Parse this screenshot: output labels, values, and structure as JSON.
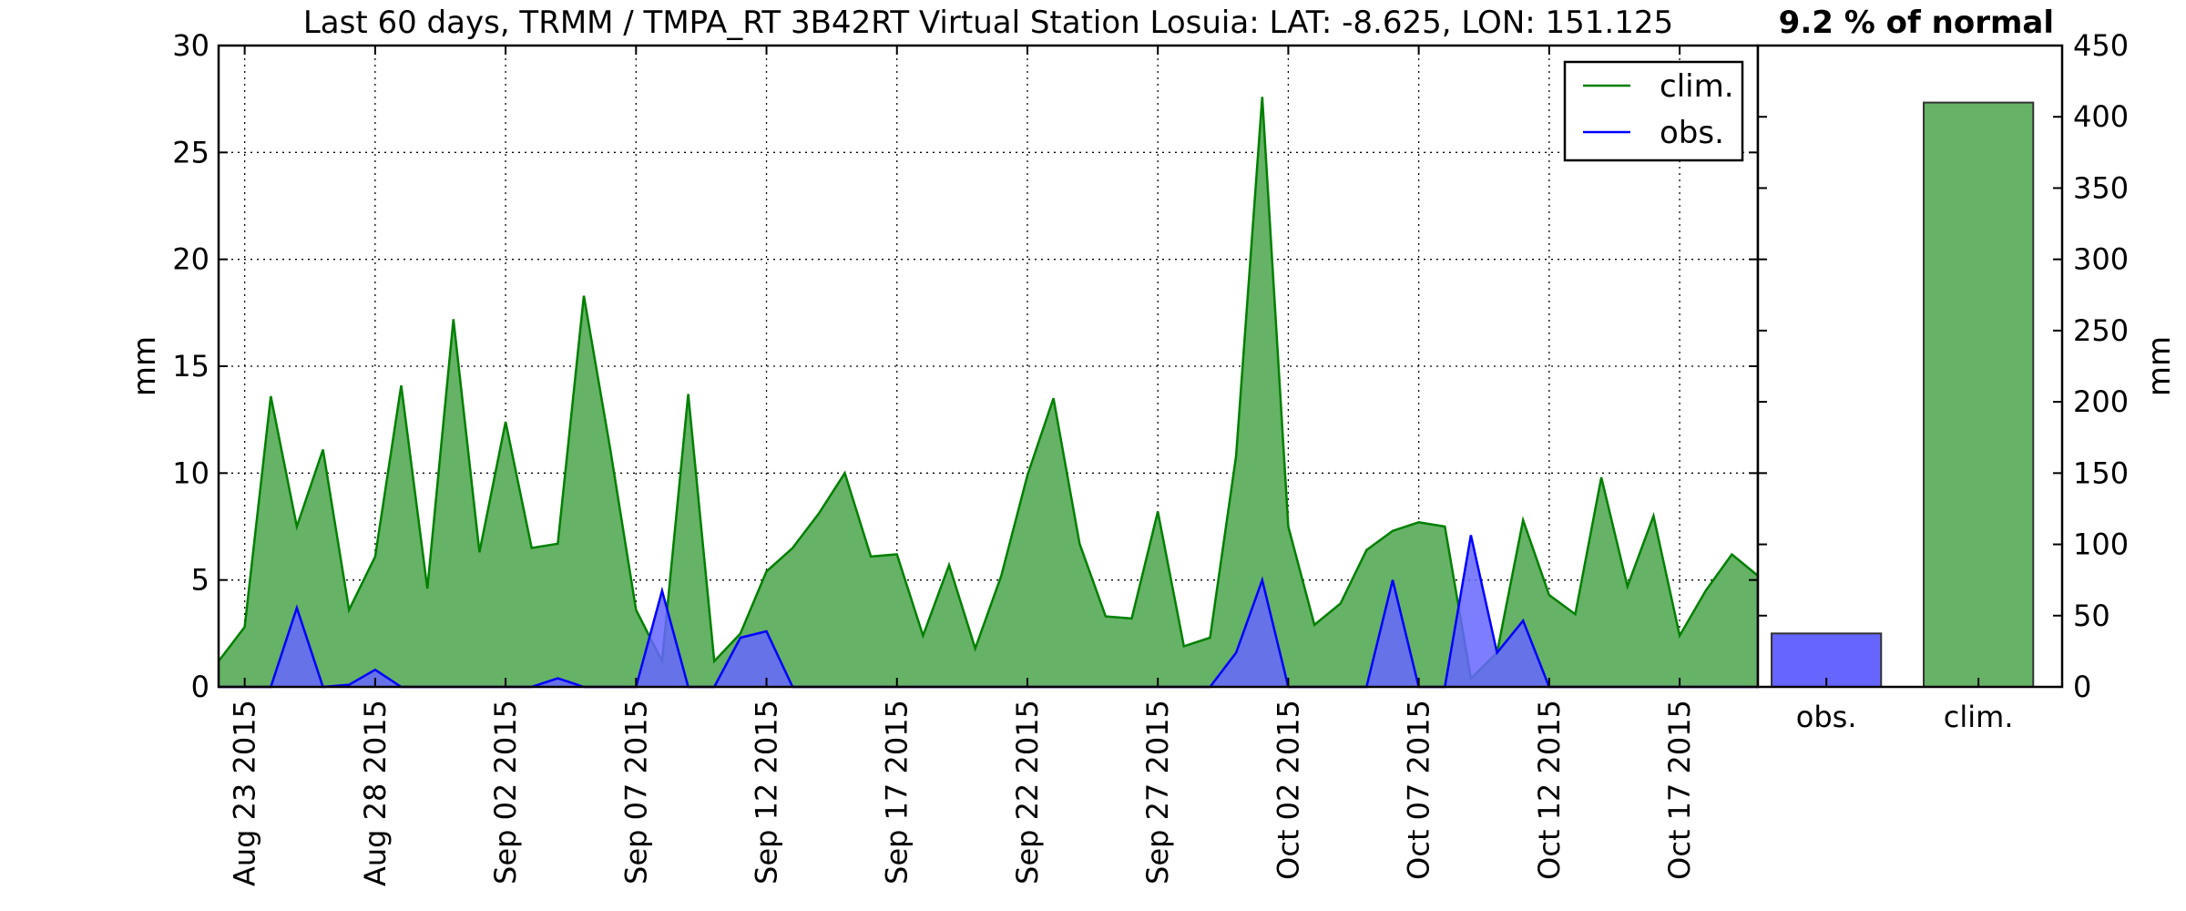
{
  "chart_data": [
    {
      "type": "area",
      "title": "Last 60 days, TRMM / TMPA_RT 3B42RT Virtual Station Losuia: LAT: -8.625, LON: 151.125",
      "ylabel": "mm",
      "xlabel": "",
      "ylim": [
        0,
        30
      ],
      "yticks": [
        0,
        5,
        10,
        15,
        20,
        25,
        30
      ],
      "xlim": [
        "2015-08-22",
        "2015-10-20"
      ],
      "x_tick_labels": [
        {
          "date": "2015-08-23",
          "label": "Aug 23 2015"
        },
        {
          "date": "2015-08-28",
          "label": "Aug 28 2015"
        },
        {
          "date": "2015-09-02",
          "label": "Sep 02 2015"
        },
        {
          "date": "2015-09-07",
          "label": "Sep 07 2015"
        },
        {
          "date": "2015-09-12",
          "label": "Sep 12 2015"
        },
        {
          "date": "2015-09-17",
          "label": "Sep 17 2015"
        },
        {
          "date": "2015-09-22",
          "label": "Sep 22 2015"
        },
        {
          "date": "2015-09-27",
          "label": "Sep 27 2015"
        },
        {
          "date": "2015-10-02",
          "label": "Oct 02 2015"
        },
        {
          "date": "2015-10-07",
          "label": "Oct 07 2015"
        },
        {
          "date": "2015-10-12",
          "label": "Oct 12 2015"
        },
        {
          "date": "2015-10-17",
          "label": "Oct 17 2015"
        }
      ],
      "grid": true,
      "legend_position": "top-right",
      "x": [
        "2015-08-22",
        "2015-08-23",
        "2015-08-24",
        "2015-08-25",
        "2015-08-26",
        "2015-08-27",
        "2015-08-28",
        "2015-08-29",
        "2015-08-30",
        "2015-08-31",
        "2015-09-01",
        "2015-09-02",
        "2015-09-03",
        "2015-09-04",
        "2015-09-05",
        "2015-09-06",
        "2015-09-07",
        "2015-09-08",
        "2015-09-09",
        "2015-09-10",
        "2015-09-11",
        "2015-09-12",
        "2015-09-13",
        "2015-09-14",
        "2015-09-15",
        "2015-09-16",
        "2015-09-17",
        "2015-09-18",
        "2015-09-19",
        "2015-09-20",
        "2015-09-21",
        "2015-09-22",
        "2015-09-23",
        "2015-09-24",
        "2015-09-25",
        "2015-09-26",
        "2015-09-27",
        "2015-09-28",
        "2015-09-29",
        "2015-09-30",
        "2015-10-01",
        "2015-10-02",
        "2015-10-03",
        "2015-10-04",
        "2015-10-05",
        "2015-10-06",
        "2015-10-07",
        "2015-10-08",
        "2015-10-09",
        "2015-10-10",
        "2015-10-11",
        "2015-10-12",
        "2015-10-13",
        "2015-10-14",
        "2015-10-15",
        "2015-10-16",
        "2015-10-17",
        "2015-10-18",
        "2015-10-19",
        "2015-10-20"
      ],
      "series": [
        {
          "name": "clim.",
          "color": "#008000",
          "fill": "#66b266",
          "values": [
            1.2,
            2.8,
            13.6,
            7.5,
            11.1,
            3.6,
            6.1,
            14.1,
            4.6,
            17.2,
            6.3,
            12.4,
            6.5,
            6.7,
            18.3,
            11.2,
            3.6,
            1.2,
            13.7,
            1.2,
            2.5,
            5.4,
            6.5,
            8.1,
            10.0,
            6.1,
            6.2,
            2.4,
            5.7,
            1.8,
            5.2,
            9.9,
            13.5,
            6.7,
            3.3,
            3.2,
            8.2,
            1.9,
            2.3,
            10.8,
            27.6,
            7.5,
            2.9,
            3.9,
            6.4,
            7.3,
            7.7,
            7.5,
            0.4,
            1.6,
            7.8,
            4.3,
            3.4,
            9.8,
            4.7,
            8.0,
            2.4,
            4.5,
            6.2,
            5.2
          ]
        },
        {
          "name": "obs.",
          "color": "#0000ff",
          "fill": "#6666ff",
          "values": [
            0,
            0,
            0,
            3.7,
            0,
            0.1,
            0.8,
            0,
            0,
            0,
            0,
            0,
            0,
            0.4,
            0,
            0,
            0,
            4.5,
            0,
            0,
            2.3,
            2.6,
            0,
            0,
            0,
            0,
            0,
            0,
            0,
            0,
            0,
            0,
            0,
            0,
            0,
            0,
            0,
            0,
            0,
            1.6,
            5.0,
            0,
            0,
            0,
            0,
            5.0,
            0,
            0,
            7.1,
            1.6,
            3.1,
            0,
            0,
            0,
            0,
            0,
            0,
            0,
            0,
            0
          ]
        }
      ]
    },
    {
      "type": "bar",
      "title": "9.2 % of normal",
      "ylabel": "mm",
      "ylim": [
        0,
        450
      ],
      "yticks": [
        0,
        50,
        100,
        150,
        200,
        250,
        300,
        350,
        400,
        450
      ],
      "categories": [
        "obs.",
        "clim."
      ],
      "values": [
        37.5,
        410
      ],
      "colors": [
        "#6666ff",
        "#66b266"
      ]
    }
  ]
}
